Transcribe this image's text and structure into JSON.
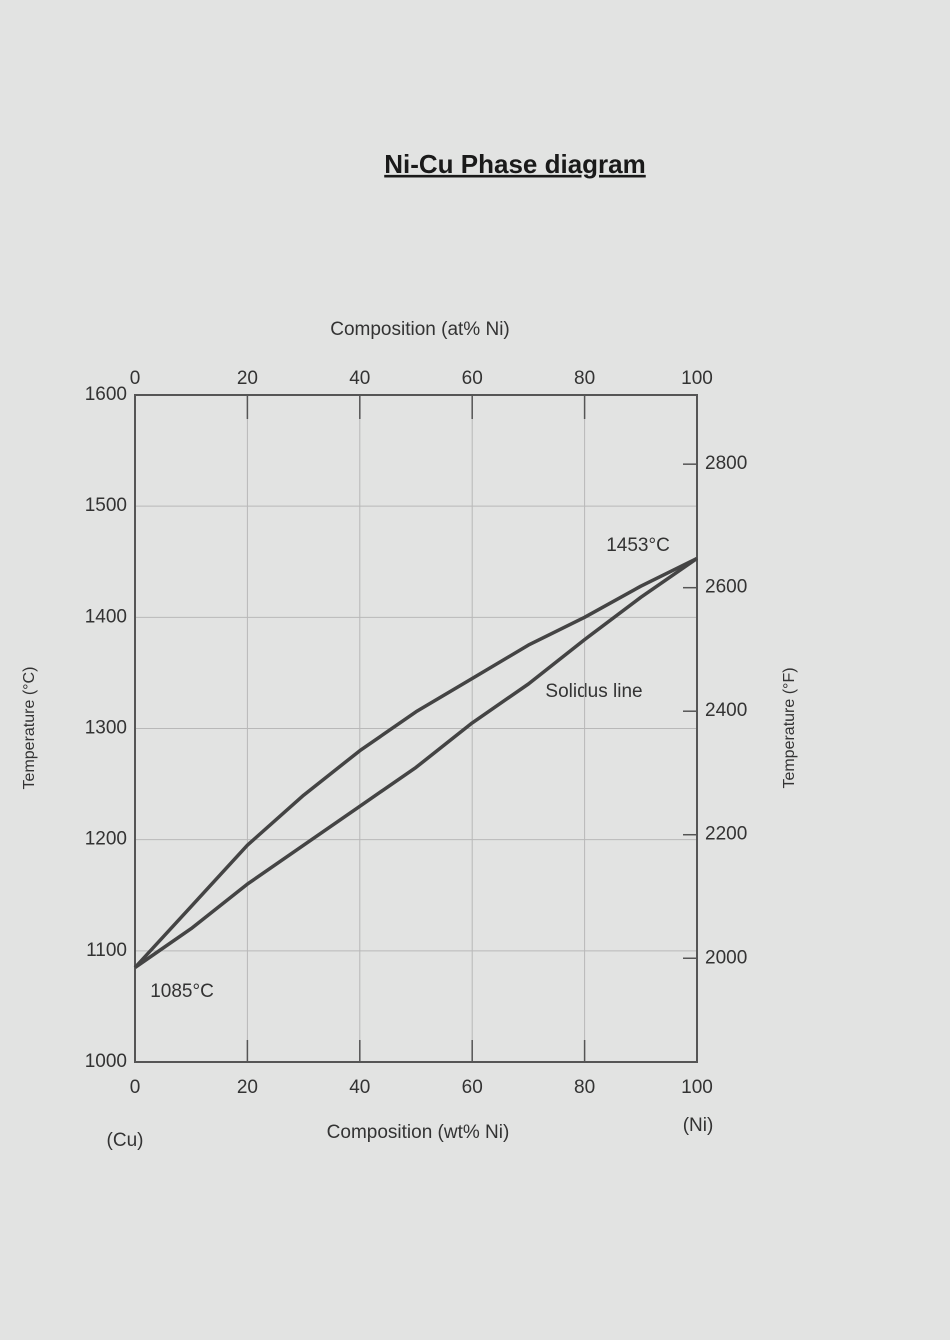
{
  "chart_data": {
    "type": "line",
    "title": "Ni-Cu Phase diagram",
    "x_label": "Composition (wt% Ni)",
    "x2_label": "Composition (at% Ni)",
    "y_label": "Temperature (°C)",
    "y2_label": "Temperature (°F)",
    "x_end_labels": [
      "(Cu)",
      "(Ni)"
    ],
    "annotations": [
      "1453°C",
      "1085°C",
      "Solidus line"
    ],
    "x": [
      0,
      10,
      20,
      30,
      40,
      50,
      60,
      70,
      80,
      90,
      100
    ],
    "series": [
      {
        "color": "#444444",
        "values": [
          1085,
          1140,
          1195,
          1240,
          1280,
          1315,
          1345,
          1375,
          1400,
          1428,
          1453
        ]
      },
      {
        "color": "#444444",
        "values": [
          1085,
          1120,
          1160,
          1195,
          1230,
          1265,
          1305,
          1340,
          1380,
          1418,
          1453
        ]
      }
    ],
    "xlim": [
      0,
      100
    ],
    "xticks": [
      0,
      20,
      40,
      60,
      80,
      100
    ],
    "x2lim": [
      0,
      100
    ],
    "x2ticks": [
      0,
      20,
      40,
      60,
      80,
      100
    ],
    "ylim": [
      1000,
      1600
    ],
    "yticks": [
      1000,
      1100,
      1200,
      1300,
      1400,
      1500,
      1600
    ],
    "y2lim": [
      1832,
      2912
    ],
    "y2ticks": [
      2000,
      2200,
      2400,
      2600,
      2800
    ],
    "grid": true
  }
}
